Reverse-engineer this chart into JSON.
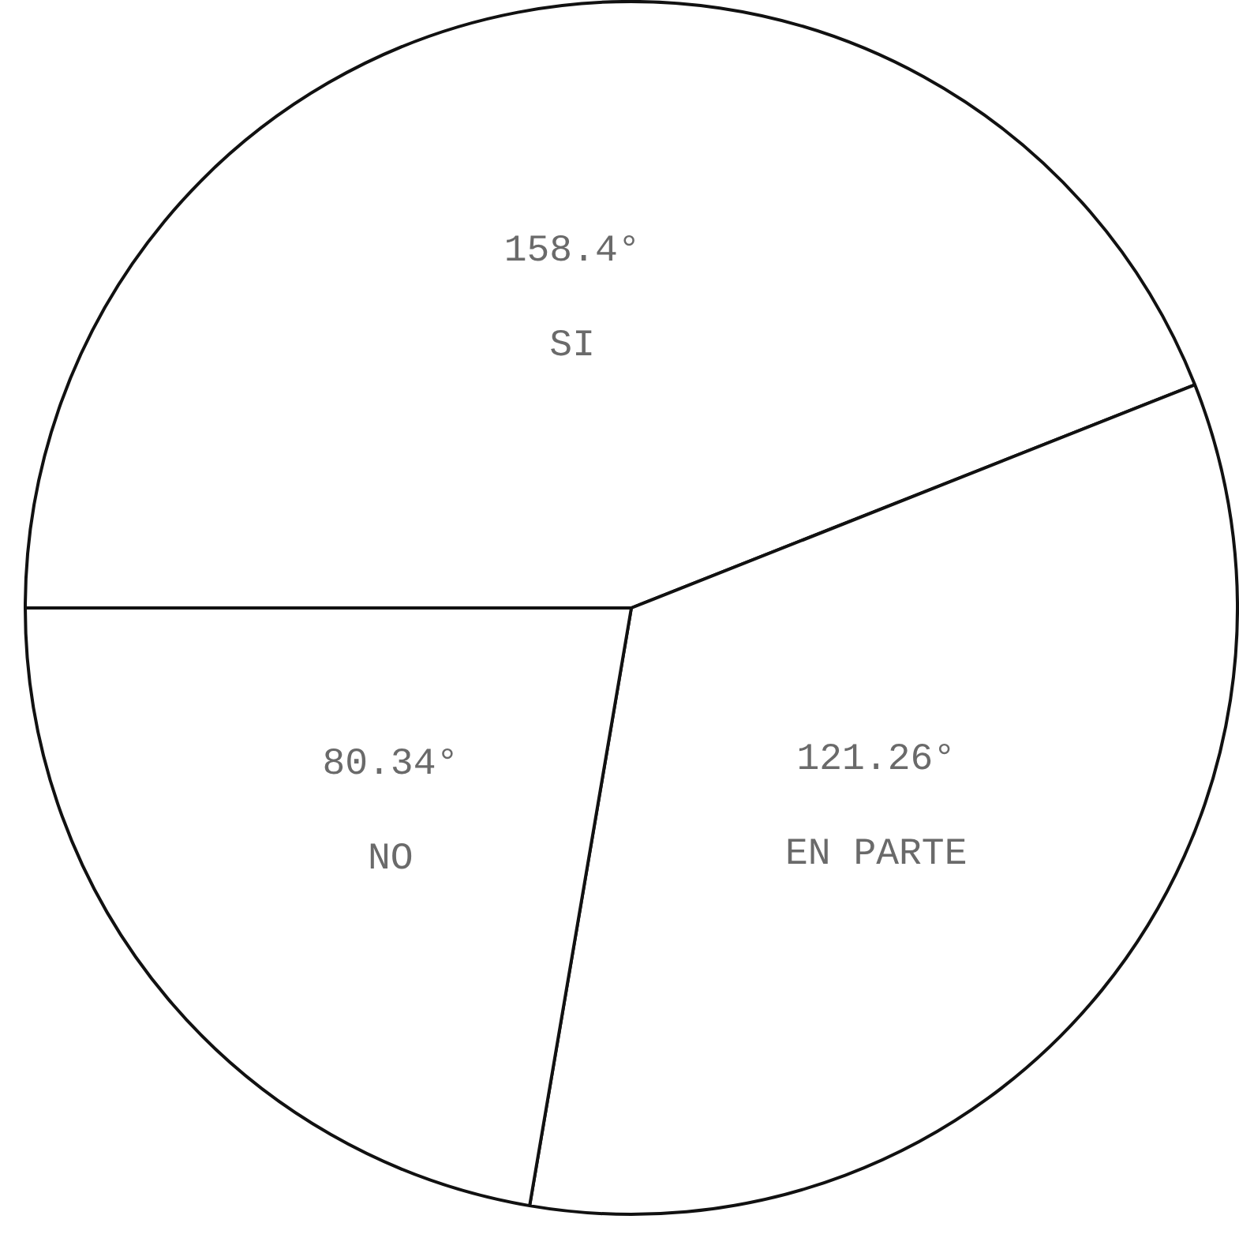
{
  "chart_data": {
    "type": "pie",
    "categories": [
      "SI",
      "EN PARTE",
      "NO"
    ],
    "values": [
      158.4,
      121.26,
      80.34
    ],
    "value_labels": [
      "158.4°",
      "121.26°",
      "80.34°"
    ],
    "colors": [
      "#ffffff",
      "#ffffff",
      "#ffffff"
    ],
    "legend": false
  }
}
